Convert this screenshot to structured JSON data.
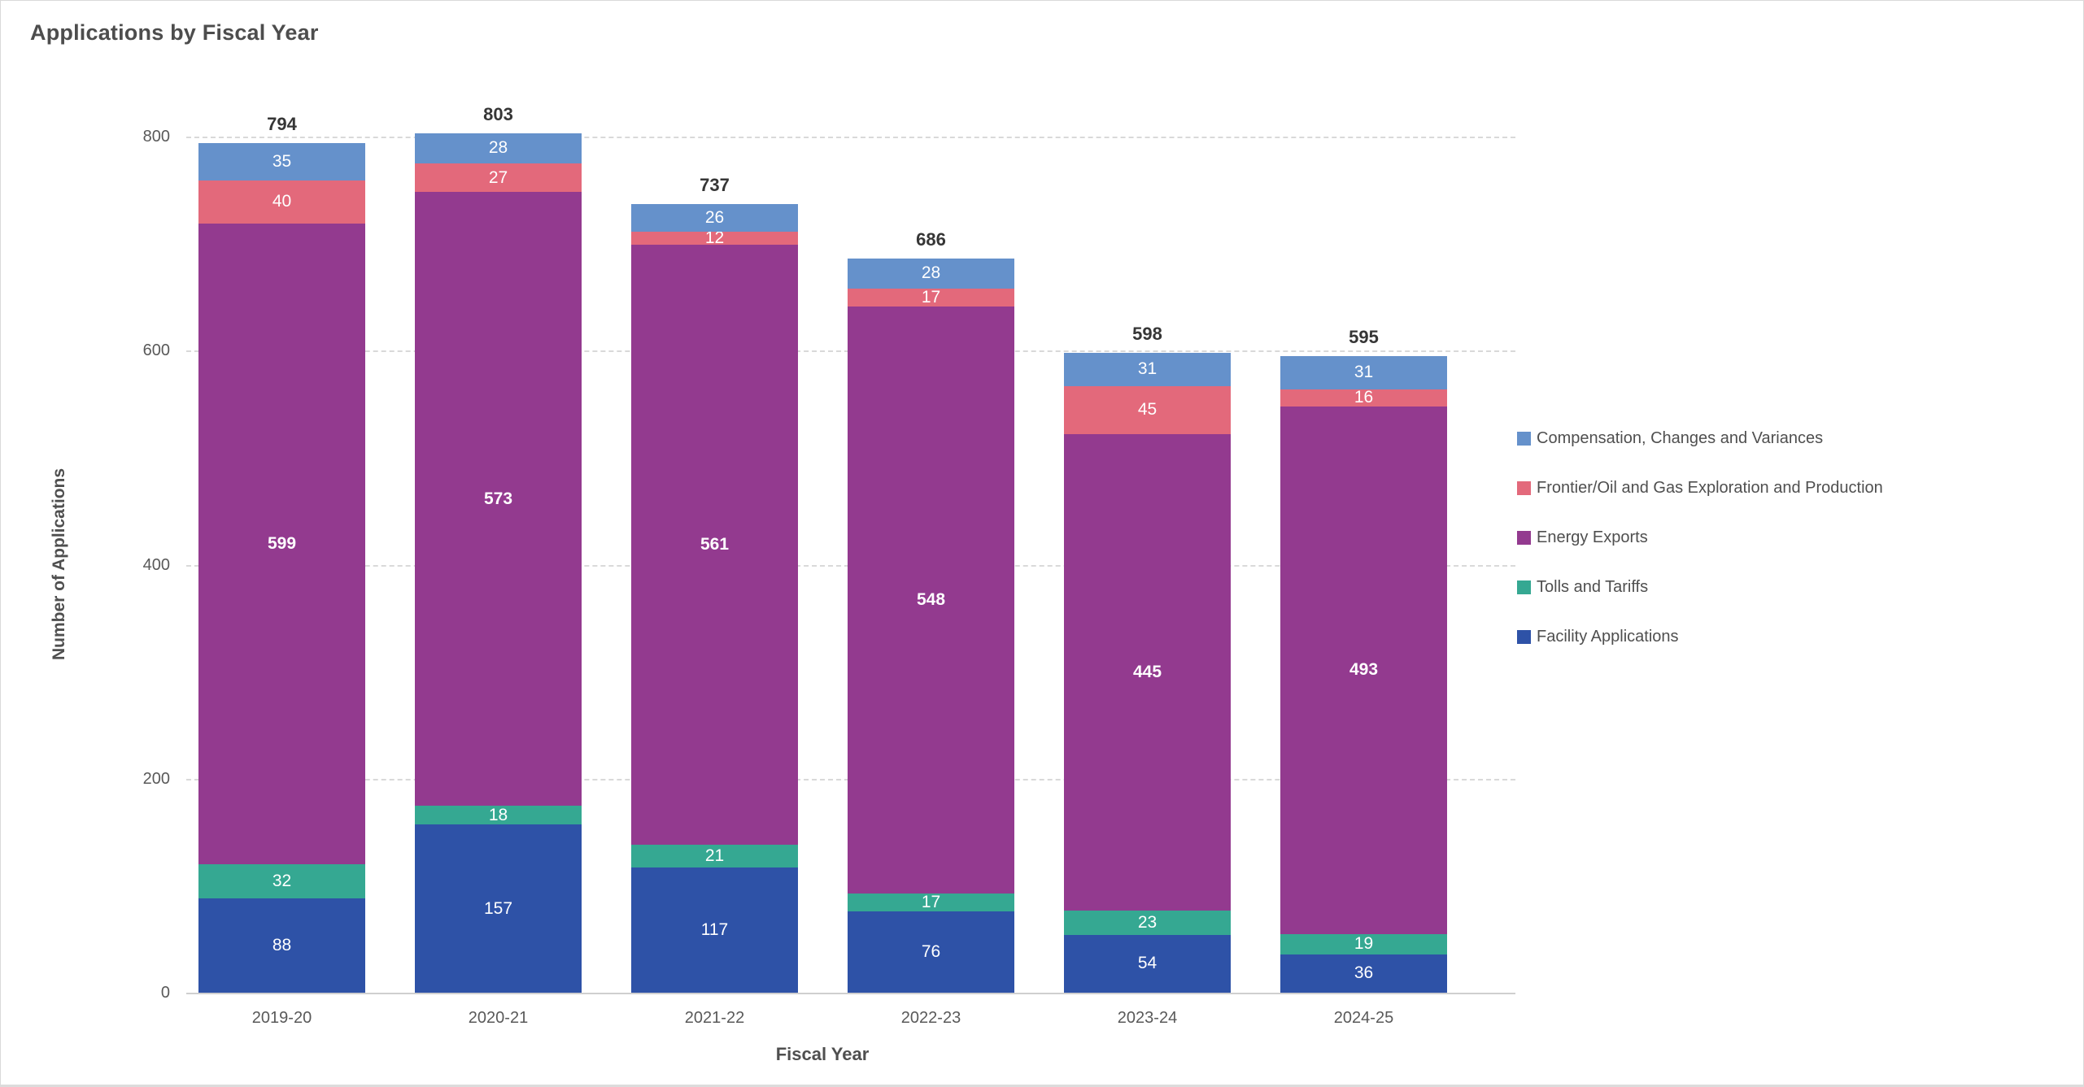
{
  "chart_data": {
    "type": "bar",
    "stacked": true,
    "title": "Applications by Fiscal Year",
    "xlabel": "Fiscal Year",
    "ylabel": "Number of Applications",
    "ylim": [
      0,
      800
    ],
    "yticks": [
      0,
      200,
      400,
      600,
      800
    ],
    "grid": "horizontal-dashed",
    "legend_position": "right",
    "categories": [
      "2019-20",
      "2020-21",
      "2021-22",
      "2022-23",
      "2023-24",
      "2024-25"
    ],
    "totals": [
      794,
      803,
      737,
      686,
      598,
      595
    ],
    "series": [
      {
        "name": "Facility Applications",
        "color": "#2E52A7",
        "values": [
          88,
          157,
          117,
          76,
          54,
          36
        ],
        "value_labels_bold": false
      },
      {
        "name": "Tolls and Tariffs",
        "color": "#35A892",
        "values": [
          32,
          18,
          21,
          17,
          23,
          19
        ],
        "value_labels_bold": false
      },
      {
        "name": "Energy Exports",
        "color": "#933A8F",
        "values": [
          599,
          573,
          561,
          548,
          445,
          493
        ],
        "value_labels_bold": true
      },
      {
        "name": "Frontier/Oil and Gas Exploration and Production",
        "color": "#E3697B",
        "values": [
          40,
          27,
          12,
          17,
          45,
          16
        ],
        "value_labels_bold": false
      },
      {
        "name": "Compensation, Changes and Variances",
        "color": "#6591CB",
        "values": [
          35,
          28,
          26,
          28,
          31,
          31
        ],
        "value_labels_bold": false
      }
    ]
  }
}
